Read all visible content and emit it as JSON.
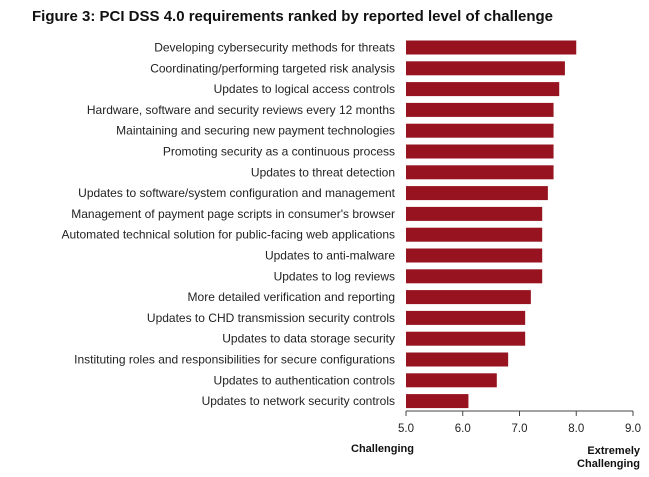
{
  "chart_data": {
    "type": "bar",
    "orientation": "horizontal",
    "title": "Figure 3: PCI DSS 4.0 requirements ranked by reported level of challenge",
    "categories": [
      "Developing cybersecurity methods for threats",
      "Coordinating/performing targeted risk analysis",
      "Updates to logical access controls",
      "Hardware, software and security reviews every 12 months",
      "Maintaining and securing new payment technologies",
      "Promoting security as a continuous process",
      "Updates to threat detection",
      "Updates to software/system configuration and management",
      "Management of payment page scripts in consumer's browser",
      "Automated technical solution for public-facing web applications",
      "Updates to anti-malware",
      "Updates to log reviews",
      "More detailed verification and reporting",
      "Updates to CHD transmission security controls",
      "Updates to data storage security",
      "Instituting roles and responsibilities for secure configurations",
      "Updates to authentication controls",
      "Updates to network security controls"
    ],
    "values": [
      8.0,
      7.8,
      7.7,
      7.6,
      7.6,
      7.6,
      7.6,
      7.5,
      7.4,
      7.4,
      7.4,
      7.4,
      7.2,
      7.1,
      7.1,
      6.8,
      6.6,
      6.1
    ],
    "xlim": [
      5.0,
      9.0
    ],
    "xticks": [
      "5.0",
      "6.0",
      "7.0",
      "8.0",
      "9.0"
    ],
    "axis_end_labels": {
      "left": "Challenging",
      "right": "Extremely Challenging"
    },
    "bar_color": "#96131f",
    "grid": false
  }
}
